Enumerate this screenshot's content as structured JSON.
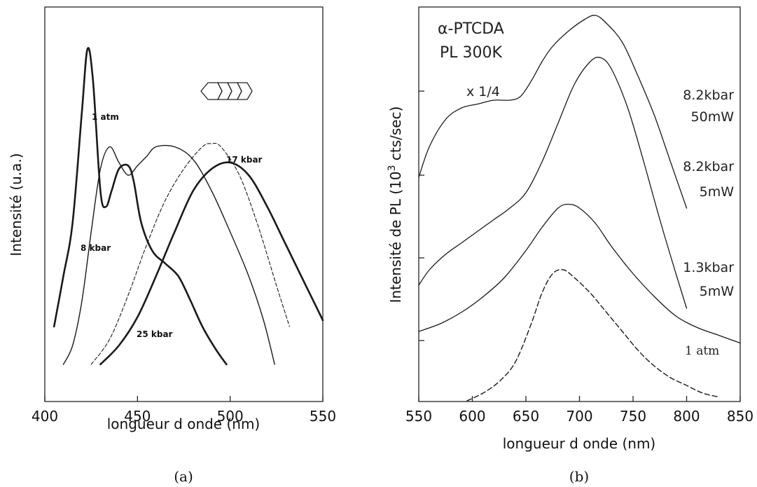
{
  "chart_data": [
    {
      "type": "line",
      "panel_label": "(a)",
      "xlabel": "longueur d onde (nm)",
      "ylabel": "Intensité (u.a.)",
      "xlim": [
        400,
        550
      ],
      "xticks": [
        400,
        450,
        500,
        550
      ],
      "ylim": [
        0,
        1
      ],
      "series": [
        {
          "name": "1 atm",
          "x": [
            405,
            410,
            415,
            420,
            423,
            426,
            430,
            433,
            436,
            440,
            445,
            448,
            452,
            458,
            465,
            472,
            478,
            485,
            492,
            498
          ],
          "y": [
            0.12,
            0.28,
            0.45,
            0.8,
            1.0,
            0.9,
            0.55,
            0.5,
            0.55,
            0.62,
            0.63,
            0.58,
            0.45,
            0.36,
            0.32,
            0.28,
            0.21,
            0.12,
            0.05,
            0.0
          ]
        },
        {
          "name": "8 kbar",
          "x": [
            410,
            415,
            420,
            425,
            430,
            435,
            440,
            445,
            450,
            455,
            460,
            470,
            480,
            490,
            500,
            510,
            518,
            524
          ],
          "y": [
            0.0,
            0.06,
            0.2,
            0.42,
            0.62,
            0.69,
            0.64,
            0.6,
            0.63,
            0.66,
            0.69,
            0.69,
            0.65,
            0.55,
            0.42,
            0.28,
            0.14,
            0.0
          ]
        },
        {
          "name": "17 kbar",
          "x": [
            425,
            435,
            445,
            455,
            465,
            475,
            485,
            490,
            495,
            505,
            515,
            525,
            532
          ],
          "y": [
            0.0,
            0.08,
            0.22,
            0.38,
            0.52,
            0.62,
            0.69,
            0.7,
            0.69,
            0.6,
            0.44,
            0.25,
            0.12
          ]
        },
        {
          "name": "25 kbar",
          "x": [
            430,
            440,
            450,
            460,
            470,
            480,
            490,
            500,
            510,
            520,
            530,
            540,
            550
          ],
          "y": [
            0.0,
            0.06,
            0.15,
            0.28,
            0.42,
            0.55,
            0.62,
            0.64,
            0.6,
            0.5,
            0.38,
            0.26,
            0.14
          ]
        }
      ],
      "annotations": [
        "1 atm",
        "8 kbar",
        "17 kbar",
        "25 kbar"
      ]
    },
    {
      "type": "line",
      "panel_label": "(b)",
      "title": "α-PTCDA PL 300K",
      "xlabel": "longueur d onde (nm)",
      "ylabel": "Intensité de PL (10³ cts/sec)",
      "xlim": [
        550,
        850
      ],
      "xticks": [
        550,
        600,
        650,
        700,
        750,
        800,
        850
      ],
      "ylim": [
        0,
        1
      ],
      "series": [
        {
          "name": "8.2kbar 50mW",
          "x": [
            550,
            560,
            575,
            590,
            605,
            620,
            635,
            645,
            655,
            665,
            675,
            690,
            705,
            715,
            725,
            740,
            755,
            770,
            785,
            800
          ],
          "y": [
            0.58,
            0.66,
            0.73,
            0.76,
            0.77,
            0.78,
            0.78,
            0.79,
            0.83,
            0.88,
            0.92,
            0.96,
            0.99,
            1.0,
            0.98,
            0.93,
            0.84,
            0.74,
            0.62,
            0.5
          ]
        },
        {
          "name": "8.2kbar 5mW",
          "x": [
            550,
            560,
            575,
            590,
            605,
            620,
            635,
            650,
            665,
            680,
            695,
            710,
            720,
            730,
            745,
            760,
            775,
            790,
            800
          ],
          "y": [
            0.3,
            0.34,
            0.38,
            0.41,
            0.44,
            0.47,
            0.5,
            0.54,
            0.62,
            0.72,
            0.82,
            0.88,
            0.89,
            0.86,
            0.76,
            0.62,
            0.47,
            0.33,
            0.24
          ]
        },
        {
          "name": "1.3kbar 5mW",
          "x": [
            550,
            570,
            590,
            610,
            630,
            650,
            665,
            680,
            690,
            700,
            715,
            730,
            750,
            770,
            790,
            810,
            830,
            850
          ],
          "y": [
            0.18,
            0.2,
            0.23,
            0.27,
            0.32,
            0.39,
            0.45,
            0.5,
            0.51,
            0.5,
            0.46,
            0.4,
            0.33,
            0.27,
            0.22,
            0.19,
            0.17,
            0.15
          ]
        },
        {
          "name": "1 atm",
          "x": [
            595,
            610,
            625,
            640,
            655,
            665,
            675,
            685,
            695,
            710,
            725,
            740,
            755,
            770,
            785,
            800,
            815,
            830
          ],
          "y": [
            0.0,
            0.02,
            0.05,
            0.1,
            0.2,
            0.28,
            0.33,
            0.34,
            0.32,
            0.28,
            0.23,
            0.18,
            0.13,
            0.09,
            0.06,
            0.04,
            0.02,
            0.01
          ]
        }
      ],
      "annotations": [
        "x 1/4",
        "8.2kbar",
        "50mW",
        "8.2kbar",
        "5mW",
        "1.3kbar",
        "5mW",
        "1 atm"
      ]
    }
  ]
}
